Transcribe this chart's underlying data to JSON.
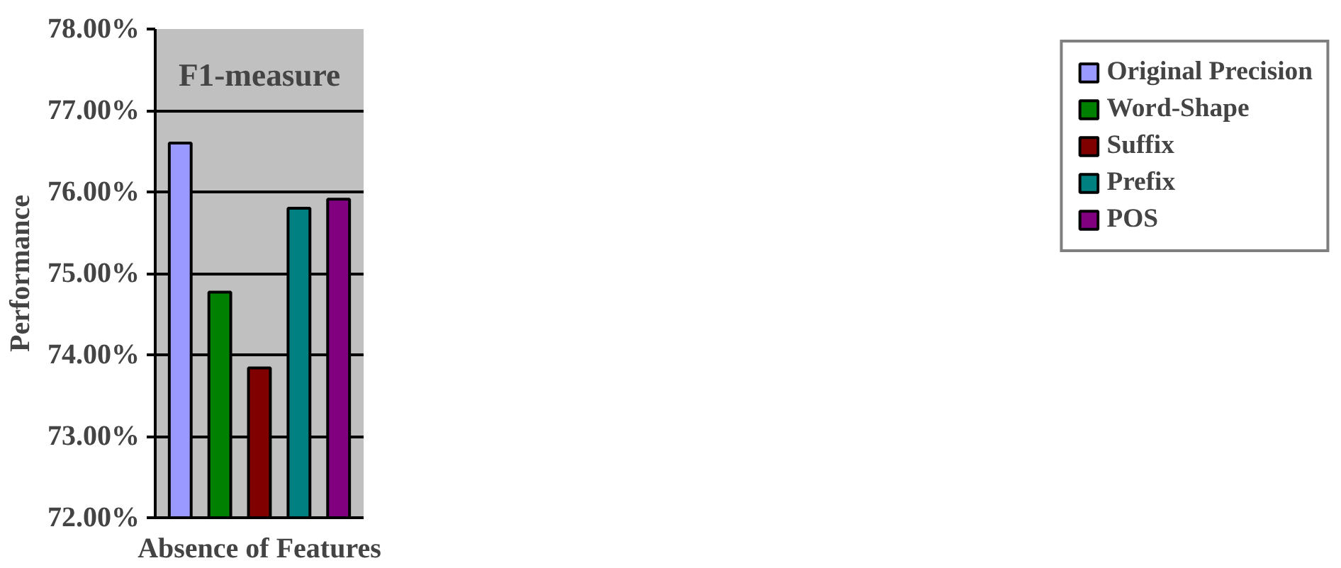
{
  "chart_data": {
    "type": "bar",
    "title": "F1-measure",
    "xlabel": "Absence of Features",
    "ylabel": "Performance",
    "categories": [
      null
    ],
    "series": [
      {
        "name": "Original Precision",
        "color": "#9999ff",
        "values": [
          76.6
        ]
      },
      {
        "name": "Word-Shape",
        "color": "#008000",
        "values": [
          74.77
        ]
      },
      {
        "name": "Suffix",
        "color": "#800000",
        "values": [
          73.84
        ]
      },
      {
        "name": "Prefix",
        "color": "#008080",
        "values": [
          75.8
        ]
      },
      {
        "name": "POS",
        "color": "#800080",
        "values": [
          75.91
        ]
      }
    ],
    "ylim": [
      72,
      78
    ],
    "yticks": [
      {
        "value": 72,
        "label": "72.00%"
      },
      {
        "value": 73,
        "label": "73.00%"
      },
      {
        "value": 74,
        "label": "74.00%"
      },
      {
        "value": 75,
        "label": "75.00%"
      },
      {
        "value": 76,
        "label": "76.00%"
      },
      {
        "value": 77,
        "label": "77.00%"
      },
      {
        "value": 78,
        "label": "78.00%"
      }
    ],
    "grid": "y",
    "legend": "right"
  }
}
